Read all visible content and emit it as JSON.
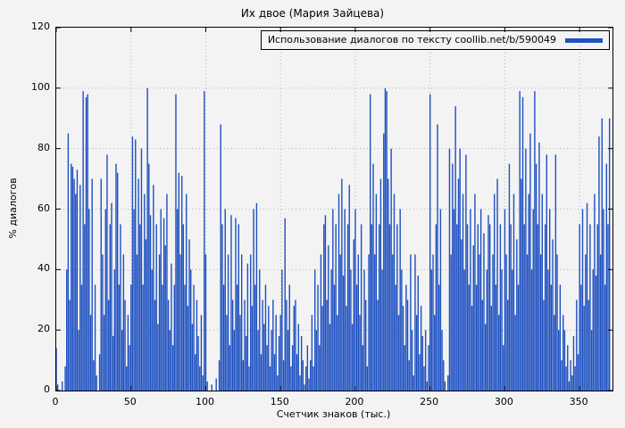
{
  "chart_data": {
    "type": "bar",
    "title": "Их двое (Мария Зайцева)",
    "legend": "Использование диалогов по тексту coollib.net/b/590049",
    "xlabel": "Счетчик знаков (тыс.)",
    "ylabel": "% диалогов",
    "xlim": [
      0,
      372
    ],
    "ylim": [
      0,
      120
    ],
    "x_ticks": [
      0,
      50,
      100,
      150,
      200,
      250,
      300,
      350
    ],
    "y_ticks": [
      0,
      20,
      40,
      60,
      80,
      100,
      120
    ],
    "x_step": 1,
    "bar_color": "#1e50c0",
    "grid_color": "#b3b3b3",
    "axis_color": "#000000",
    "values": [
      14,
      2,
      0,
      0,
      3,
      0,
      8,
      40,
      85,
      30,
      75,
      74,
      70,
      65,
      73,
      20,
      68,
      35,
      99,
      55,
      97,
      98,
      60,
      25,
      70,
      10,
      35,
      5,
      0,
      12,
      70,
      45,
      25,
      60,
      78,
      30,
      55,
      62,
      18,
      40,
      75,
      72,
      35,
      55,
      20,
      45,
      30,
      8,
      25,
      15,
      35,
      84,
      60,
      83,
      45,
      70,
      55,
      80,
      35,
      65,
      50,
      100,
      75,
      58,
      40,
      68,
      30,
      55,
      22,
      45,
      60,
      35,
      57,
      48,
      65,
      30,
      20,
      42,
      15,
      35,
      98,
      60,
      72,
      45,
      71,
      55,
      35,
      65,
      28,
      50,
      40,
      22,
      35,
      12,
      30,
      18,
      8,
      25,
      5,
      99,
      45,
      3,
      0,
      0,
      2,
      0,
      0,
      4,
      0,
      10,
      88,
      55,
      35,
      60,
      25,
      45,
      15,
      58,
      30,
      20,
      57,
      35,
      55,
      25,
      45,
      10,
      30,
      18,
      42,
      8,
      45,
      28,
      60,
      35,
      62,
      20,
      40,
      12,
      30,
      22,
      35,
      15,
      28,
      8,
      20,
      30,
      12,
      25,
      5,
      18,
      25,
      40,
      10,
      57,
      30,
      20,
      35,
      8,
      15,
      28,
      30,
      12,
      22,
      5,
      18,
      10,
      2,
      8,
      15,
      4,
      10,
      25,
      8,
      40,
      20,
      35,
      15,
      45,
      28,
      55,
      58,
      30,
      48,
      22,
      40,
      60,
      35,
      55,
      25,
      65,
      45,
      70,
      38,
      60,
      28,
      55,
      68,
      40,
      22,
      50,
      60,
      35,
      45,
      25,
      55,
      15,
      40,
      30,
      8,
      45,
      98,
      55,
      75,
      45,
      65,
      30,
      55,
      70,
      40,
      85,
      100,
      99,
      70,
      55,
      80,
      45,
      65,
      35,
      55,
      25,
      60,
      40,
      28,
      15,
      35,
      30,
      10,
      45,
      20,
      5,
      45,
      25,
      38,
      12,
      28,
      18,
      8,
      20,
      3,
      15,
      98,
      40,
      45,
      25,
      55,
      88,
      35,
      60,
      20,
      10,
      3,
      0,
      5,
      80,
      45,
      75,
      60,
      94,
      55,
      70,
      80,
      50,
      65,
      40,
      78,
      55,
      35,
      60,
      28,
      48,
      65,
      35,
      55,
      45,
      60,
      30,
      52,
      22,
      40,
      58,
      55,
      28,
      45,
      65,
      35,
      70,
      25,
      55,
      40,
      15,
      60,
      45,
      30,
      75,
      55,
      40,
      65,
      25,
      50,
      35,
      99,
      70,
      97,
      55,
      80,
      45,
      65,
      85,
      40,
      60,
      99,
      75,
      55,
      82,
      45,
      65,
      30,
      55,
      78,
      40,
      60,
      35,
      50,
      25,
      78,
      45,
      20,
      35,
      10,
      25,
      20,
      8,
      15,
      3,
      10,
      5,
      18,
      8,
      30,
      12,
      55,
      35,
      60,
      28,
      45,
      62,
      30,
      55,
      20,
      40,
      65,
      38,
      55,
      84,
      45,
      90,
      60,
      35,
      75,
      55,
      90
    ]
  }
}
